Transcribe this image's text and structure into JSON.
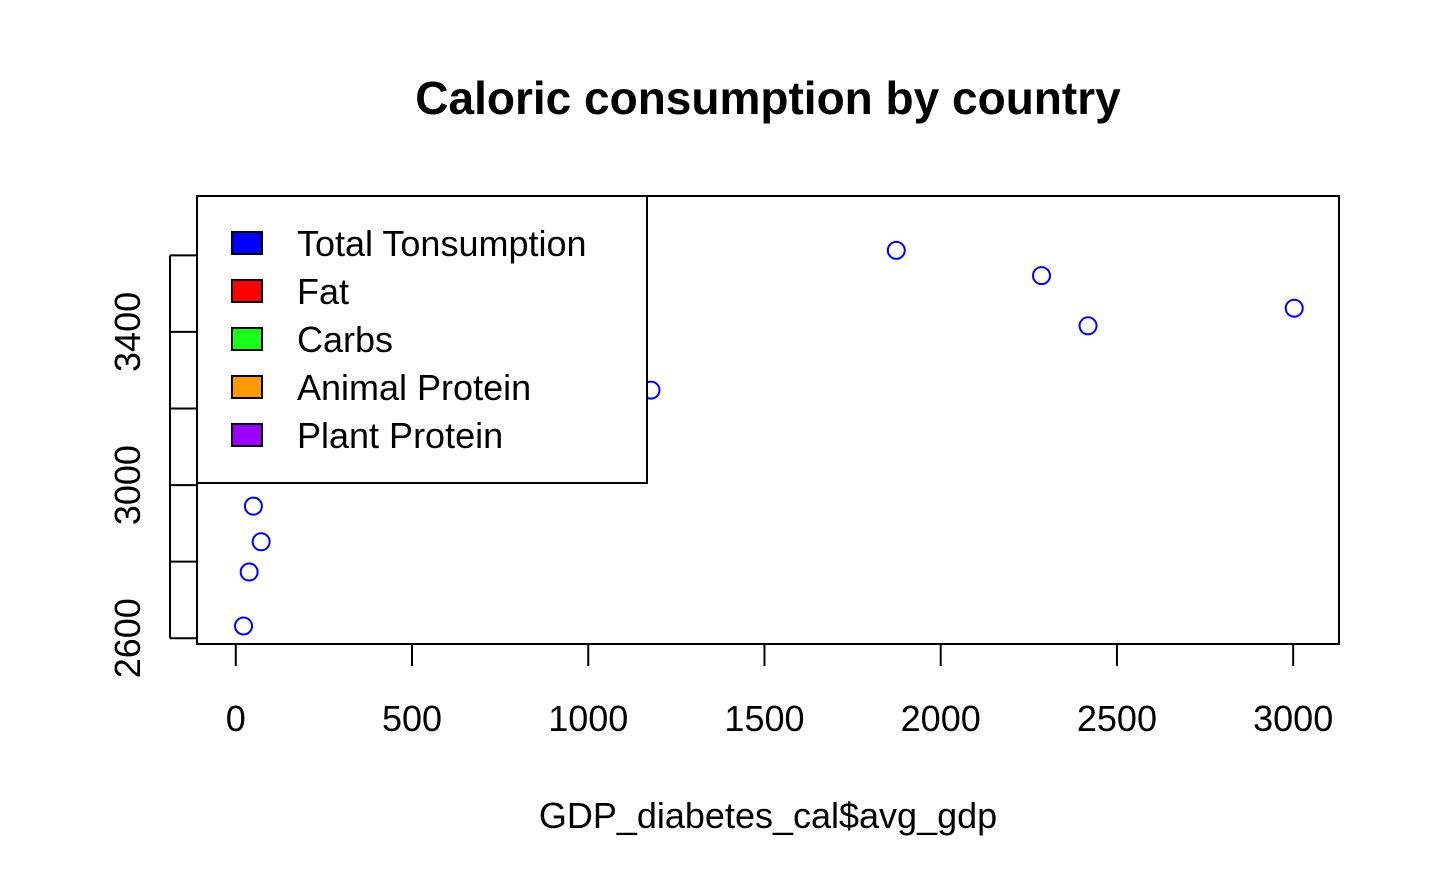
{
  "chart_data": {
    "type": "scatter",
    "title": "Caloric consumption by country",
    "xlabel": "GDP_diabetes_cal$avg_gdp",
    "ylabel": "",
    "xlim": [
      -110,
      3130
    ],
    "ylim": [
      2585,
      3755
    ],
    "xticks": [
      0,
      500,
      1000,
      1500,
      2000,
      2500,
      3000
    ],
    "xtick_labels": [
      "0",
      "500",
      "1000",
      "1500",
      "2000",
      "2500",
      "3000"
    ],
    "yticks": [
      2600,
      2800,
      3000,
      3200,
      3400,
      3600
    ],
    "ytick_labels": {
      "2600": "2600",
      "3000": "3000",
      "3400": "3400"
    },
    "grid": false,
    "marker": "open-circle",
    "series": [
      {
        "color": "#0000ff",
        "points": [
          {
            "x": 22,
            "y": 2632
          },
          {
            "x": 38,
            "y": 2773
          },
          {
            "x": 50,
            "y": 2945
          },
          {
            "x": 72,
            "y": 2852
          },
          {
            "x": 1178,
            "y": 3248
          },
          {
            "x": 1874,
            "y": 3613
          },
          {
            "x": 2286,
            "y": 3547
          },
          {
            "x": 2418,
            "y": 3416
          },
          {
            "x": 3003,
            "y": 3462
          }
        ]
      }
    ],
    "legend": {
      "placement": "top-left",
      "entries": [
        {
          "label": "Total Tonsumption",
          "color": "#0000ff"
        },
        {
          "label": "Fat",
          "color": "#ff0000"
        },
        {
          "label": "Carbs",
          "color": "#1aff1a"
        },
        {
          "label": "Animal Protein",
          "color": "#ff9900"
        },
        {
          "label": "Plant Protein",
          "color": "#9900ff"
        }
      ]
    }
  }
}
